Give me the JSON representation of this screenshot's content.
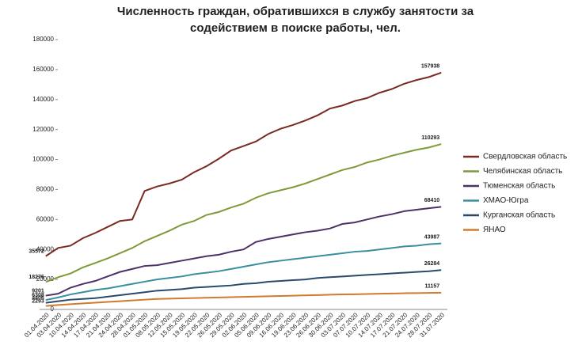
{
  "chart_data": {
    "type": "line",
    "title": "Численность граждан, обратившихся в службу занятости за содействием в поиске работы, чел.",
    "categories": [
      "01.04.2020",
      "03.04.2020",
      "10.04.2020",
      "14.04.2020",
      "17.04.2020",
      "21.04.2020",
      "24.04.2020",
      "28.04.2020",
      "01.05.2020",
      "08.05.2020",
      "12.05.2020",
      "15.05.2020",
      "19.05.2020",
      "22.05.2020",
      "26.05.2020",
      "29.05.2020",
      "02.06.2020",
      "05.06.2020",
      "09.06.2020",
      "16.06.2020",
      "19.06.2020",
      "23.06.2020",
      "26.06.2020",
      "30.06.2020",
      "03.07.2020",
      "07.07.2020",
      "10.07.2020",
      "14.07.2020",
      "17.07.2020",
      "21.07.2020",
      "24.07.2020",
      "28.07.2020",
      "31.07.2020"
    ],
    "series": [
      {
        "name": "Свердловская область",
        "color": "#7b2a23",
        "values": [
          35572,
          41000,
          42500,
          47500,
          51000,
          55000,
          59000,
          60000,
          79000,
          82000,
          84000,
          86500,
          91500,
          95500,
          100500,
          106000,
          109000,
          112000,
          117000,
          120500,
          123000,
          126000,
          129500,
          134000,
          136000,
          139000,
          141000,
          144500,
          147000,
          150500,
          153000,
          155000,
          157938
        ]
      },
      {
        "name": "Челябинская область",
        "color": "#7f9a3a",
        "values": [
          18276,
          21500,
          24000,
          28000,
          31000,
          34000,
          37500,
          41000,
          45500,
          49000,
          52500,
          56500,
          59000,
          63000,
          65000,
          68000,
          70500,
          74500,
          77500,
          79500,
          81500,
          84000,
          87000,
          90000,
          93000,
          95000,
          98000,
          100000,
          102500,
          104500,
          106500,
          108000,
          110293
        ]
      },
      {
        "name": "Тюменская область",
        "color": "#4e3168",
        "values": [
          9201,
          10500,
          14500,
          17000,
          19000,
          22000,
          25000,
          27000,
          29000,
          29500,
          31000,
          32500,
          34000,
          35500,
          36500,
          38500,
          40000,
          45000,
          47000,
          48500,
          50000,
          51500,
          52500,
          54000,
          57000,
          58000,
          60000,
          62000,
          63500,
          65500,
          66500,
          67500,
          68410
        ]
      },
      {
        "name": "ХМАО-Югра",
        "color": "#3a8f9e",
        "values": [
          6308,
          8000,
          10000,
          11500,
          13000,
          14000,
          15500,
          17000,
          18500,
          20000,
          21000,
          22000,
          23500,
          24500,
          25500,
          27000,
          28500,
          30000,
          31500,
          32500,
          33500,
          34500,
          35500,
          36500,
          37500,
          38500,
          39000,
          40000,
          41000,
          42000,
          42500,
          43500,
          43987
        ]
      },
      {
        "name": "Курганская область",
        "color": "#2b4a6b",
        "values": [
          4406,
          5500,
          6500,
          7000,
          7500,
          8500,
          9500,
          10500,
          11500,
          12500,
          13000,
          13500,
          14500,
          15000,
          15500,
          16000,
          17000,
          17500,
          18500,
          19000,
          19500,
          20000,
          21000,
          21500,
          22000,
          22500,
          23000,
          23500,
          24000,
          24500,
          25000,
          25500,
          26284
        ]
      },
      {
        "name": "ЯНАО",
        "color": "#d07b2d",
        "values": [
          2293,
          3000,
          3500,
          4000,
          4500,
          5000,
          5500,
          6000,
          6500,
          7000,
          7200,
          7400,
          7600,
          7800,
          8000,
          8200,
          8400,
          8600,
          8800,
          9000,
          9200,
          9400,
          9600,
          9800,
          10000,
          10100,
          10300,
          10500,
          10600,
          10800,
          10900,
          11000,
          11157
        ]
      }
    ],
    "ylim": [
      0,
      180000
    ],
    "yticks": [
      0,
      20000,
      40000,
      60000,
      80000,
      100000,
      120000,
      140000,
      160000,
      180000
    ],
    "grid": false,
    "legend": "right"
  }
}
